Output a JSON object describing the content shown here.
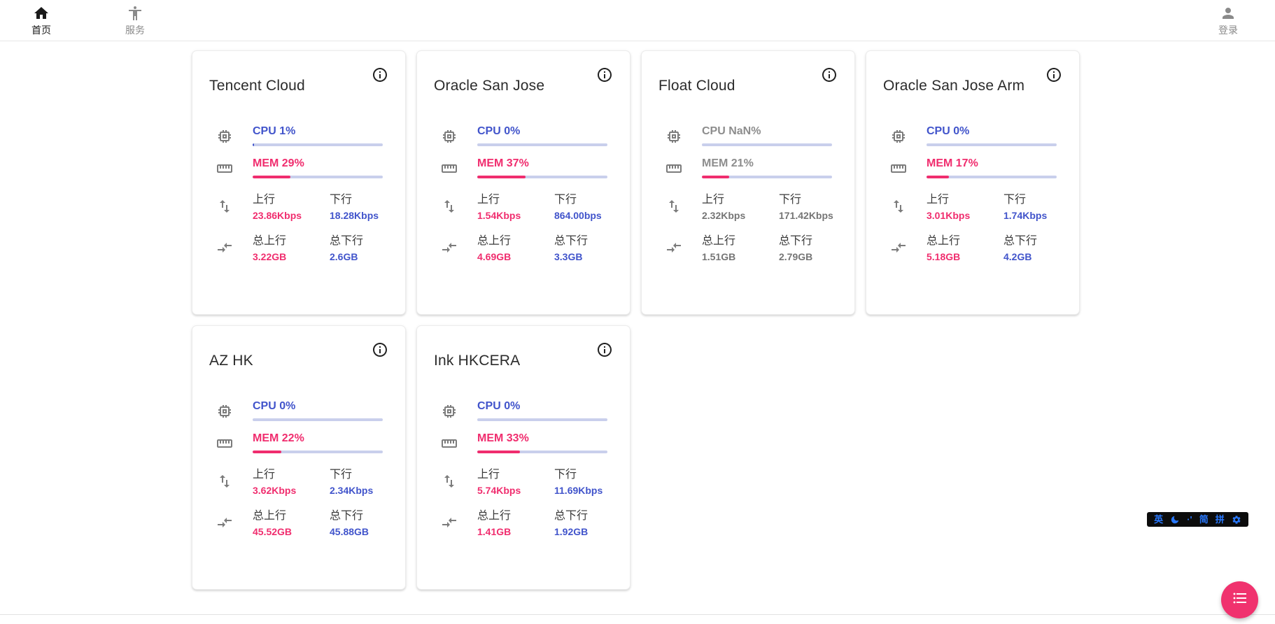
{
  "nav": {
    "home": {
      "label": "首页",
      "icon": "home-icon"
    },
    "services": {
      "label": "服务",
      "icon": "accessibility-icon"
    },
    "login": {
      "label": "登录",
      "icon": "person-icon"
    }
  },
  "labels": {
    "upload": "上行",
    "download": "下行",
    "total_upload": "总上行",
    "total_download": "总下行"
  },
  "colors": {
    "accent_blue": "#4154cb",
    "accent_pink": "#f02d6e",
    "bar_track": "#c9cfec",
    "fab_pink": "#f0326e",
    "ime_blue": "#2979ff",
    "offline_gray": "#757575"
  },
  "servers": [
    {
      "name": "Tencent Cloud",
      "cpu_label": "CPU 1%",
      "cpu_pct": 1,
      "mem_label": "MEM 29%",
      "mem_pct": 29,
      "upload": "23.86Kbps",
      "download": "18.28Kbps",
      "total_upload": "3.22GB",
      "total_download": "2.6GB",
      "online": true
    },
    {
      "name": "Oracle San Jose",
      "cpu_label": "CPU 0%",
      "cpu_pct": 0,
      "mem_label": "MEM 37%",
      "mem_pct": 37,
      "upload": "1.54Kbps",
      "download": "864.00bps",
      "total_upload": "4.69GB",
      "total_download": "3.3GB",
      "online": true
    },
    {
      "name": "Float Cloud",
      "cpu_label": "CPU NaN%",
      "cpu_pct": null,
      "mem_label": "MEM 21%",
      "mem_pct": 21,
      "upload": "2.32Kbps",
      "download": "171.42Kbps",
      "total_upload": "1.51GB",
      "total_download": "2.79GB",
      "online": false
    },
    {
      "name": "Oracle San Jose Arm",
      "cpu_label": "CPU 0%",
      "cpu_pct": 0,
      "mem_label": "MEM 17%",
      "mem_pct": 17,
      "upload": "3.01Kbps",
      "download": "1.74Kbps",
      "total_upload": "5.18GB",
      "total_download": "4.2GB",
      "online": true
    },
    {
      "name": "AZ HK",
      "cpu_label": "CPU 0%",
      "cpu_pct": 0,
      "mem_label": "MEM 22%",
      "mem_pct": 22,
      "upload": "3.62Kbps",
      "download": "2.34Kbps",
      "total_upload": "45.52GB",
      "total_download": "45.88GB",
      "online": true
    },
    {
      "name": "Ink HKCERA",
      "cpu_label": "CPU 0%",
      "cpu_pct": 0,
      "mem_label": "MEM 33%",
      "mem_pct": 33,
      "upload": "5.74Kbps",
      "download": "11.69Kbps",
      "total_upload": "1.41GB",
      "total_download": "1.92GB",
      "online": true
    }
  ],
  "ime_bar": {
    "lang": "英",
    "punct": "·'",
    "simplified": "简",
    "pinyin": "拼"
  }
}
